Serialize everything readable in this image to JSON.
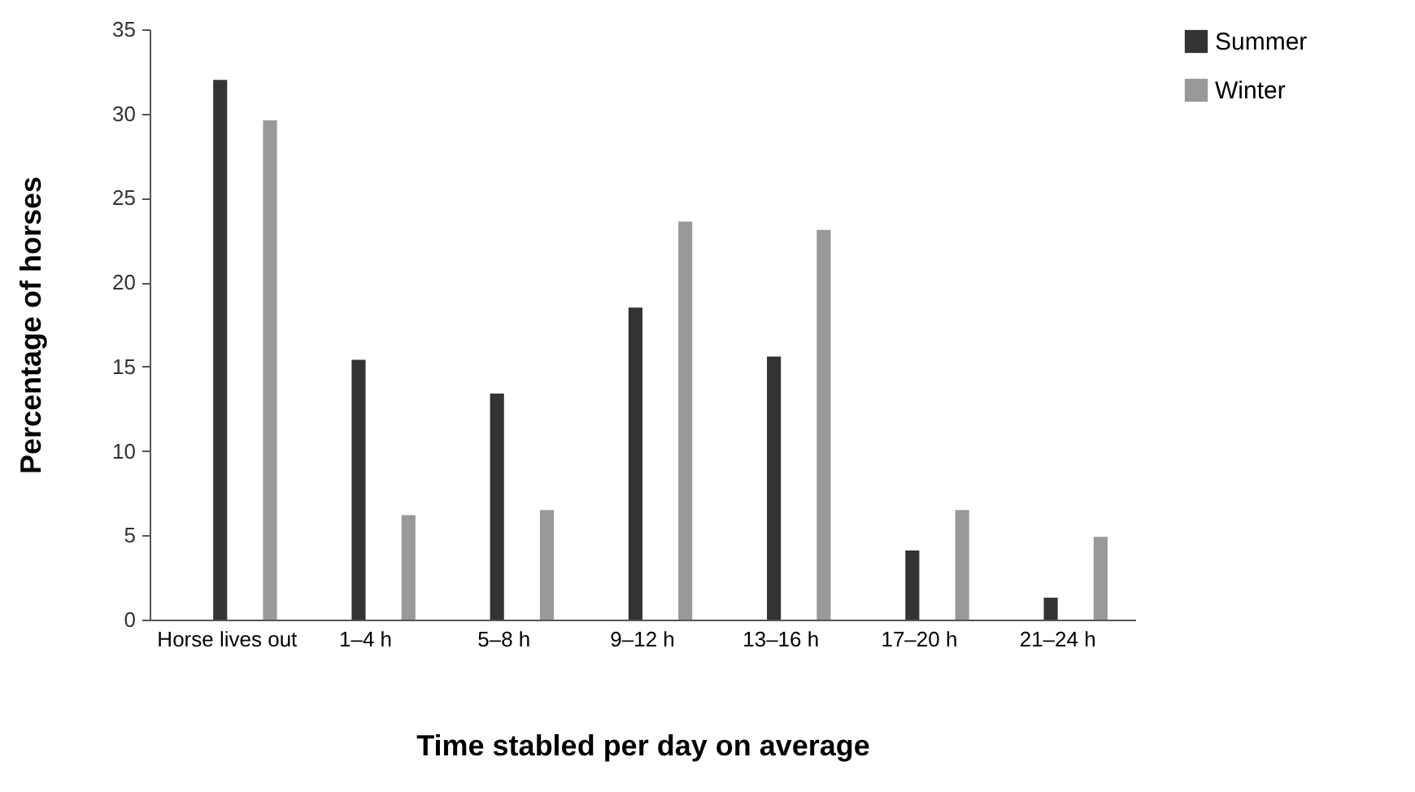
{
  "chart_data": {
    "type": "bar",
    "xlabel": "Time stabled per day on average",
    "ylabel": "Percentage of horses",
    "categories": [
      "Horse lives out",
      "1–4 h",
      "5–8 h",
      "9–12 h",
      "13–16 h",
      "17–20 h",
      "21–24 h"
    ],
    "series": [
      {
        "name": "Summer",
        "color": "#333333",
        "values": [
          32.0,
          15.4,
          13.4,
          18.5,
          15.6,
          4.1,
          1.3
        ]
      },
      {
        "name": "Winter",
        "color": "#999999",
        "values": [
          29.6,
          6.2,
          6.5,
          23.6,
          23.1,
          6.5,
          4.9
        ]
      }
    ],
    "ylim": [
      0,
      35
    ],
    "yticks": [
      0,
      5,
      10,
      15,
      20,
      25,
      30,
      35
    ],
    "grid": false,
    "legend": "right"
  }
}
